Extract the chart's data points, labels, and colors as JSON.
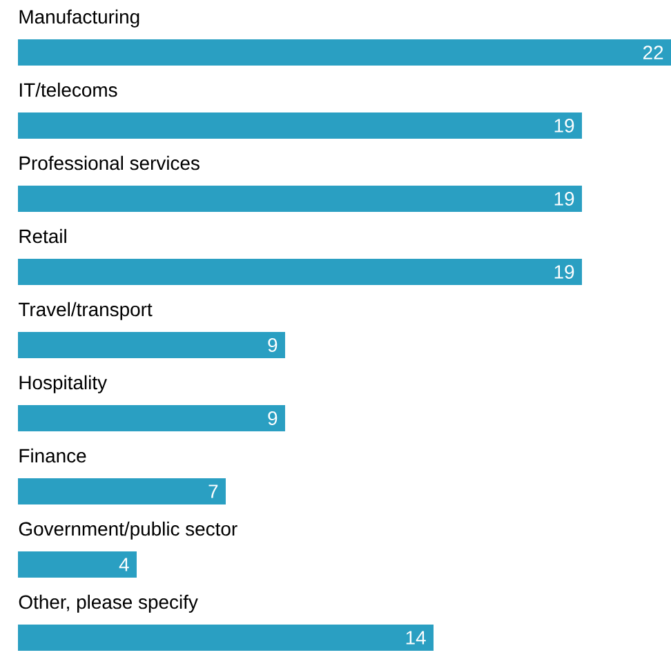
{
  "chart_data": {
    "type": "bar",
    "orientation": "horizontal",
    "categories": [
      "Manufacturing",
      "IT/telecoms",
      "Professional services",
      "Retail",
      "Travel/transport",
      "Hospitality",
      "Finance",
      "Government/public sector",
      "Other, please specify"
    ],
    "values": [
      22,
      19,
      19,
      19,
      9,
      9,
      7,
      4,
      14
    ],
    "color": "#2a9fc2",
    "data_labels": true
  }
}
